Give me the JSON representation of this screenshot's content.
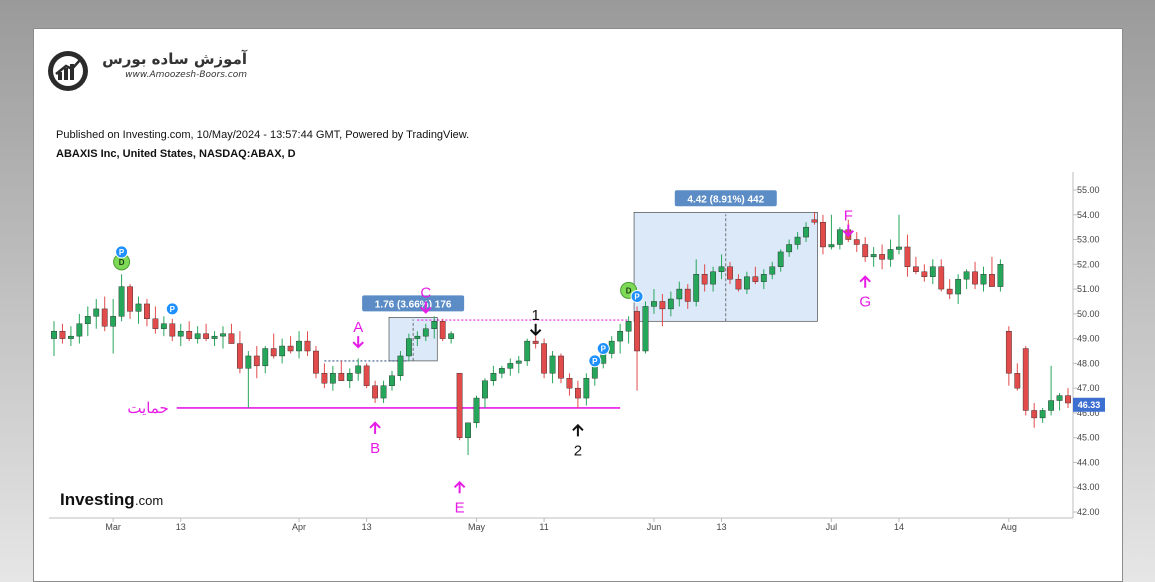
{
  "logo": {
    "title_fa": "آموزش ساده بورس",
    "url": "www.Amoozesh-Boors.com"
  },
  "header": {
    "published": "Published on Investing.com, 10/May/2024 - 13:57:44 GMT, Powered by TradingView.",
    "symbol": "ABAXIS Inc, United States, NASDAQ:ABAX, D"
  },
  "watermark": {
    "brand": "Investing",
    "suffix": ".com"
  },
  "colors": {
    "up": "#26a65b",
    "down": "#e24b4b",
    "annotation": "#e61ce6",
    "measure_bg": "#cfe2f7",
    "measure_label": "#5b8cc6",
    "last_price": "#3d6fd1"
  },
  "chart_data": {
    "type": "candlestick",
    "title": "ABAXIS Inc, United States, NASDAQ:ABAX, D",
    "ylim": [
      41.6,
      55.6
    ],
    "y_ticks": [
      "55.00",
      "54.00",
      "53.00",
      "52.00",
      "51.00",
      "50.00",
      "49.00",
      "48.00",
      "47.00",
      "46.00",
      "45.00",
      "44.00",
      "43.00",
      "42.00"
    ],
    "x_ticks": [
      {
        "label": "Mar",
        "i": 7
      },
      {
        "label": "13",
        "i": 15
      },
      {
        "label": "Apr",
        "i": 29
      },
      {
        "label": "13",
        "i": 37
      },
      {
        "label": "May",
        "i": 50
      },
      {
        "label": "11",
        "i": 58
      },
      {
        "label": "Jun",
        "i": 71
      },
      {
        "label": "13",
        "i": 79
      },
      {
        "label": "Jul",
        "i": 92
      },
      {
        "label": "14",
        "i": 100
      },
      {
        "label": "Aug",
        "i": 113
      }
    ],
    "last_price": "46.33",
    "candles": [
      [
        49.0,
        49.7,
        48.3,
        49.3
      ],
      [
        49.3,
        49.6,
        48.8,
        49.0
      ],
      [
        49.0,
        49.5,
        48.7,
        49.1
      ],
      [
        49.1,
        50.0,
        48.8,
        49.6
      ],
      [
        49.6,
        50.3,
        49.1,
        49.9
      ],
      [
        49.9,
        50.6,
        49.4,
        50.2
      ],
      [
        50.2,
        50.7,
        49.3,
        49.5
      ],
      [
        49.5,
        50.6,
        48.4,
        49.9
      ],
      [
        49.9,
        51.6,
        49.7,
        51.1
      ],
      [
        51.1,
        51.2,
        49.8,
        50.1
      ],
      [
        50.1,
        50.7,
        49.6,
        50.4
      ],
      [
        50.4,
        50.6,
        49.5,
        49.8
      ],
      [
        49.8,
        50.3,
        49.2,
        49.4
      ],
      [
        49.4,
        49.9,
        49.1,
        49.6
      ],
      [
        49.6,
        49.8,
        48.9,
        49.1
      ],
      [
        49.1,
        49.6,
        48.7,
        49.3
      ],
      [
        49.3,
        49.7,
        48.9,
        49.0
      ],
      [
        49.0,
        49.5,
        48.8,
        49.2
      ],
      [
        49.2,
        49.6,
        48.9,
        49.0
      ],
      [
        49.0,
        49.3,
        48.7,
        49.1
      ],
      [
        49.1,
        49.5,
        48.6,
        49.2
      ],
      [
        49.2,
        49.6,
        48.8,
        48.8
      ],
      [
        48.8,
        49.3,
        47.6,
        47.8
      ],
      [
        47.8,
        48.5,
        46.2,
        48.3
      ],
      [
        48.3,
        48.7,
        47.4,
        47.9
      ],
      [
        47.9,
        48.7,
        47.6,
        48.6
      ],
      [
        48.6,
        49.2,
        48.2,
        48.3
      ],
      [
        48.3,
        49.0,
        48.0,
        48.7
      ],
      [
        48.7,
        49.1,
        48.4,
        48.5
      ],
      [
        48.5,
        49.3,
        48.2,
        48.9
      ],
      [
        48.9,
        49.3,
        48.3,
        48.5
      ],
      [
        48.5,
        48.7,
        47.4,
        47.6
      ],
      [
        47.6,
        48.0,
        47.0,
        47.2
      ],
      [
        47.2,
        47.9,
        46.9,
        47.6
      ],
      [
        47.6,
        48.1,
        47.3,
        47.3
      ],
      [
        47.3,
        47.8,
        47.0,
        47.6
      ],
      [
        47.6,
        48.2,
        47.3,
        47.9
      ],
      [
        47.9,
        48.0,
        47.0,
        47.1
      ],
      [
        47.1,
        47.3,
        46.4,
        46.6
      ],
      [
        46.6,
        47.3,
        46.4,
        47.1
      ],
      [
        47.1,
        47.7,
        46.9,
        47.5
      ],
      [
        47.5,
        48.5,
        47.3,
        48.3
      ],
      [
        48.3,
        49.2,
        48.1,
        49.0
      ],
      [
        49.0,
        49.3,
        48.7,
        49.1
      ],
      [
        49.1,
        49.6,
        48.9,
        49.4
      ],
      [
        49.4,
        49.9,
        49.0,
        49.7
      ],
      [
        49.7,
        49.8,
        48.9,
        49.0
      ],
      [
        49.0,
        49.3,
        48.8,
        49.2
      ],
      [
        47.6,
        47.6,
        44.9,
        45.0
      ],
      [
        45.0,
        45.6,
        44.3,
        45.6
      ],
      [
        45.6,
        46.7,
        45.4,
        46.6
      ],
      [
        46.6,
        47.4,
        46.2,
        47.3
      ],
      [
        47.3,
        47.9,
        47.1,
        47.6
      ],
      [
        47.6,
        47.9,
        47.4,
        47.8
      ],
      [
        47.8,
        48.2,
        47.5,
        48.0
      ],
      [
        48.0,
        48.3,
        47.6,
        48.1
      ],
      [
        48.1,
        49.0,
        47.9,
        48.9
      ],
      [
        48.9,
        49.1,
        48.6,
        48.8
      ],
      [
        48.8,
        49.0,
        47.4,
        47.6
      ],
      [
        47.6,
        48.5,
        47.2,
        48.3
      ],
      [
        48.3,
        48.4,
        47.2,
        47.4
      ],
      [
        47.4,
        47.6,
        46.7,
        47.0
      ],
      [
        47.0,
        47.3,
        46.2,
        46.6
      ],
      [
        46.6,
        47.6,
        46.3,
        47.4
      ],
      [
        47.4,
        48.2,
        47.1,
        48.0
      ],
      [
        48.0,
        48.6,
        47.8,
        48.4
      ],
      [
        48.4,
        49.1,
        48.2,
        48.9
      ],
      [
        48.9,
        49.6,
        48.4,
        49.3
      ],
      [
        49.3,
        49.9,
        48.8,
        49.7
      ],
      [
        50.1,
        50.3,
        46.9,
        48.5
      ],
      [
        48.5,
        50.5,
        48.4,
        50.3
      ],
      [
        50.3,
        51.0,
        50.0,
        50.5
      ],
      [
        50.5,
        50.8,
        49.5,
        50.2
      ],
      [
        50.2,
        50.9,
        49.9,
        50.6
      ],
      [
        50.6,
        51.3,
        50.3,
        51.0
      ],
      [
        51.0,
        51.2,
        50.2,
        50.5
      ],
      [
        50.5,
        52.2,
        50.3,
        51.6
      ],
      [
        51.6,
        52.0,
        50.9,
        51.2
      ],
      [
        51.2,
        51.9,
        50.9,
        51.7
      ],
      [
        51.7,
        52.4,
        51.4,
        51.9
      ],
      [
        51.9,
        52.1,
        51.2,
        51.4
      ],
      [
        51.4,
        51.6,
        50.9,
        51.0
      ],
      [
        51.0,
        51.7,
        50.8,
        51.5
      ],
      [
        51.5,
        51.9,
        51.2,
        51.3
      ],
      [
        51.3,
        51.8,
        51.0,
        51.6
      ],
      [
        51.6,
        52.1,
        51.4,
        51.9
      ],
      [
        51.9,
        52.6,
        51.7,
        52.5
      ],
      [
        52.5,
        53.0,
        52.3,
        52.8
      ],
      [
        52.8,
        53.3,
        52.6,
        53.1
      ],
      [
        53.1,
        53.7,
        52.9,
        53.5
      ],
      [
        53.8,
        54.1,
        53.6,
        53.7
      ],
      [
        53.7,
        54.0,
        52.4,
        52.7
      ],
      [
        52.7,
        54.0,
        52.6,
        52.8
      ],
      [
        52.8,
        53.5,
        52.6,
        53.4
      ],
      [
        53.4,
        53.8,
        52.9,
        53.0
      ],
      [
        53.0,
        53.3,
        52.5,
        52.8
      ],
      [
        52.8,
        53.1,
        52.1,
        52.3
      ],
      [
        52.3,
        52.7,
        51.9,
        52.4
      ],
      [
        52.4,
        52.8,
        51.8,
        52.2
      ],
      [
        52.2,
        53.0,
        51.9,
        52.6
      ],
      [
        52.6,
        54.0,
        52.4,
        52.7
      ],
      [
        52.7,
        53.2,
        51.5,
        51.9
      ],
      [
        51.9,
        52.3,
        51.6,
        51.7
      ],
      [
        51.7,
        52.0,
        51.3,
        51.5
      ],
      [
        51.5,
        52.2,
        51.2,
        51.9
      ],
      [
        51.9,
        52.2,
        50.9,
        51.0
      ],
      [
        51.0,
        51.4,
        50.6,
        50.8
      ],
      [
        50.8,
        51.6,
        50.4,
        51.4
      ],
      [
        51.4,
        51.8,
        51.0,
        51.7
      ],
      [
        51.7,
        52.1,
        51.0,
        51.2
      ],
      [
        51.2,
        51.9,
        50.9,
        51.6
      ],
      [
        51.6,
        52.3,
        51.1,
        51.1
      ],
      [
        51.1,
        52.2,
        50.9,
        52.0
      ],
      [
        49.3,
        49.5,
        47.1,
        47.6
      ],
      [
        47.6,
        48.0,
        46.9,
        47.0
      ],
      [
        48.6,
        48.7,
        45.9,
        46.1
      ],
      [
        46.1,
        46.4,
        45.4,
        45.8
      ],
      [
        45.8,
        46.2,
        45.6,
        46.1
      ],
      [
        46.1,
        47.9,
        45.9,
        46.5
      ],
      [
        46.5,
        46.8,
        46.1,
        46.7
      ],
      [
        46.7,
        47.0,
        46.2,
        46.4
      ],
      [
        46.4,
        46.6,
        46.1,
        46.33
      ]
    ],
    "support_line": {
      "label": "حمایت",
      "value": 46.2,
      "from_i": 15,
      "to_i": 67
    },
    "resistance_line": {
      "label": "1",
      "value": 49.75,
      "from_i": 43,
      "to_i": 68
    },
    "dotted_line": {
      "value": 48.1,
      "from_i": 32,
      "to_i": 42
    },
    "measures": [
      {
        "label": "1.76 (3.66%) 176",
        "from_i": 40,
        "to_i": 45,
        "low": 48.1,
        "high": 49.86
      },
      {
        "label": "4.42 (8.91%) 442",
        "from_i": 69,
        "to_i": 90,
        "low": 49.7,
        "high": 54.1
      }
    ],
    "annotations": [
      {
        "label": "A",
        "i": 36,
        "value": 49.1,
        "arrow": "down",
        "color": "annotation"
      },
      {
        "label": "B",
        "i": 38,
        "value": 45.6,
        "arrow": "up",
        "color": "annotation"
      },
      {
        "label": "C",
        "i": 44,
        "value": 50.5,
        "arrow": "down",
        "color": "annotation"
      },
      {
        "label": "E",
        "i": 48,
        "value": 43.2,
        "arrow": "up",
        "color": "annotation"
      },
      {
        "label": "F",
        "i": 94,
        "value": 53.6,
        "arrow": "down",
        "color": "annotation"
      },
      {
        "label": "G",
        "i": 96,
        "value": 51.5,
        "arrow": "up",
        "color": "annotation"
      },
      {
        "label": "1",
        "i": 57,
        "value": 49.6,
        "arrow": "down",
        "color": "black"
      },
      {
        "label": "2",
        "i": 62,
        "value": 45.5,
        "arrow": "up",
        "color": "black"
      }
    ],
    "markers": [
      {
        "type": "D",
        "i": 8,
        "value": 52.1
      },
      {
        "type": "P",
        "i": 8,
        "value": 52.5
      },
      {
        "type": "P",
        "i": 14,
        "value": 50.2
      },
      {
        "type": "P",
        "i": 64,
        "value": 48.1
      },
      {
        "type": "P",
        "i": 65,
        "value": 48.6
      },
      {
        "type": "D",
        "i": 68,
        "value": 50.95
      },
      {
        "type": "P",
        "i": 69,
        "value": 50.7
      }
    ]
  }
}
